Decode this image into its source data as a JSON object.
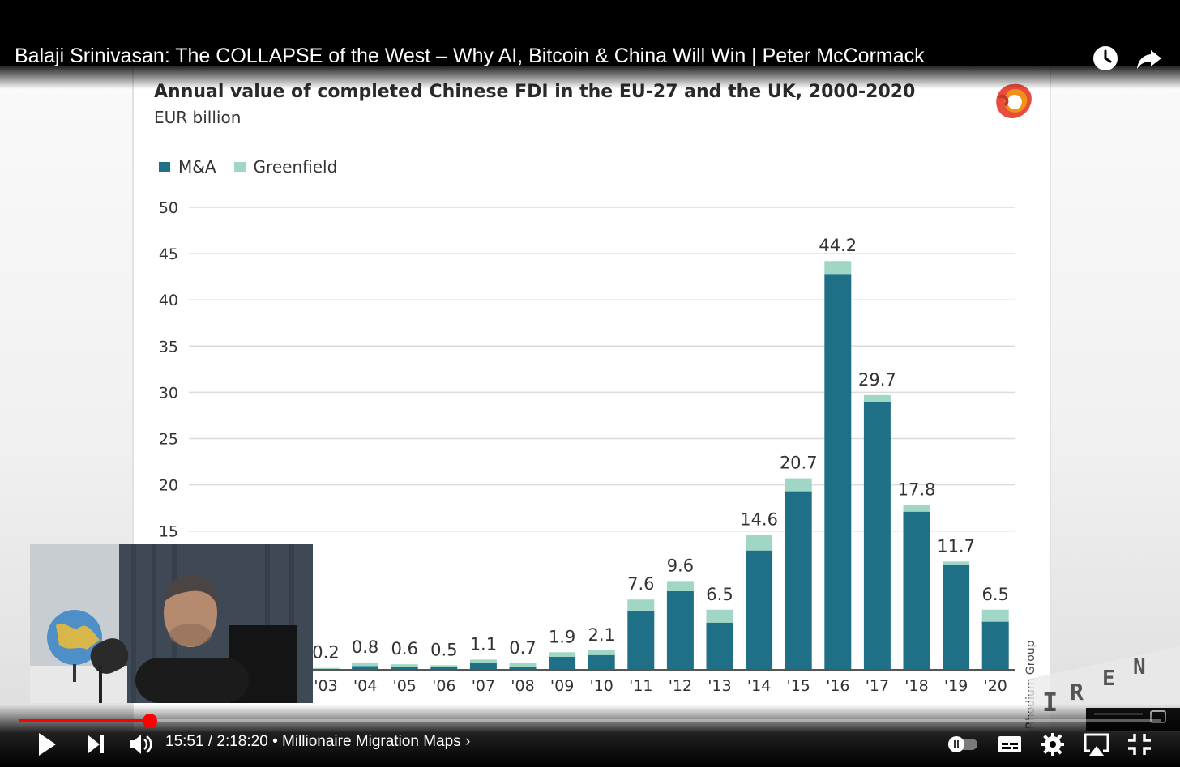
{
  "video": {
    "title": "Balaji Srinivasan: The COLLAPSE of the West – Why AI, Bitcoin & China Will Win | Peter McCormack",
    "current_time": "15:51",
    "duration": "2:18:20",
    "time_display": "15:51 / 2:18:20",
    "chapter": "• Millionaire Migration Maps ›",
    "progress_fraction": 0.1146
  },
  "slide": {
    "source": "Rhodium Group",
    "watermark_letters": [
      "I",
      "R",
      "E",
      "N"
    ]
  },
  "chart_data": {
    "type": "bar",
    "stacked": true,
    "title": "Annual value of completed Chinese FDI in the EU-27 and the UK, 2000-2020",
    "subtitle": "EUR billion",
    "legend": [
      "M&A",
      "Greenfield"
    ],
    "legend_position": "top-left",
    "ylim": [
      0,
      50
    ],
    "yticks": [
      15,
      20,
      25,
      30,
      35,
      40,
      45,
      50
    ],
    "grid": true,
    "categories": [
      "'03",
      "'04",
      "'05",
      "'06",
      "'07",
      "'08",
      "'09",
      "'10",
      "'11",
      "'12",
      "'13",
      "'14",
      "'15",
      "'16",
      "'17",
      "'18",
      "'19",
      "'20"
    ],
    "totals": [
      0.2,
      0.8,
      0.6,
      0.5,
      1.1,
      0.7,
      1.9,
      2.1,
      7.6,
      9.6,
      6.5,
      14.6,
      20.7,
      44.2,
      29.7,
      17.8,
      11.7,
      6.5
    ],
    "total_labels": [
      "0.2",
      "0.8",
      "0.6",
      "0.5",
      "1.1",
      "0.7",
      "1.9",
      "2.1",
      "7.6",
      "9.6",
      "6.5",
      "14.6",
      "20.7",
      "44.2",
      "29.7",
      "17.8",
      "11.7",
      "6.5"
    ],
    "series": [
      {
        "name": "M&A",
        "values": [
          0.1,
          0.4,
          0.3,
          0.3,
          0.7,
          0.3,
          1.4,
          1.6,
          6.4,
          8.5,
          5.1,
          12.9,
          19.3,
          42.8,
          29.0,
          17.1,
          11.3,
          5.2
        ]
      },
      {
        "name": "Greenfield",
        "values": [
          0.1,
          0.4,
          0.3,
          0.2,
          0.4,
          0.4,
          0.5,
          0.5,
          1.2,
          1.1,
          1.4,
          1.7,
          1.4,
          1.4,
          0.7,
          0.7,
          0.4,
          1.3
        ]
      }
    ],
    "colors": {
      "M&A": "#1f6f87",
      "Greenfield": "#9fd6c5"
    }
  },
  "colors": {
    "accent": "#ff0000",
    "text_dark": "#2a2a2a"
  },
  "icons": {
    "watch_later": "clock-icon",
    "share": "share-icon",
    "play": "play-icon",
    "next": "next-icon",
    "volume": "volume-icon",
    "autoplay": "autoplay-toggle-icon",
    "subtitles": "subtitles-icon",
    "settings": "gear-icon",
    "airplay": "airplay-icon",
    "exit_fullscreen": "exit-fullscreen-icon",
    "logo": "rhodium-logo-icon"
  }
}
